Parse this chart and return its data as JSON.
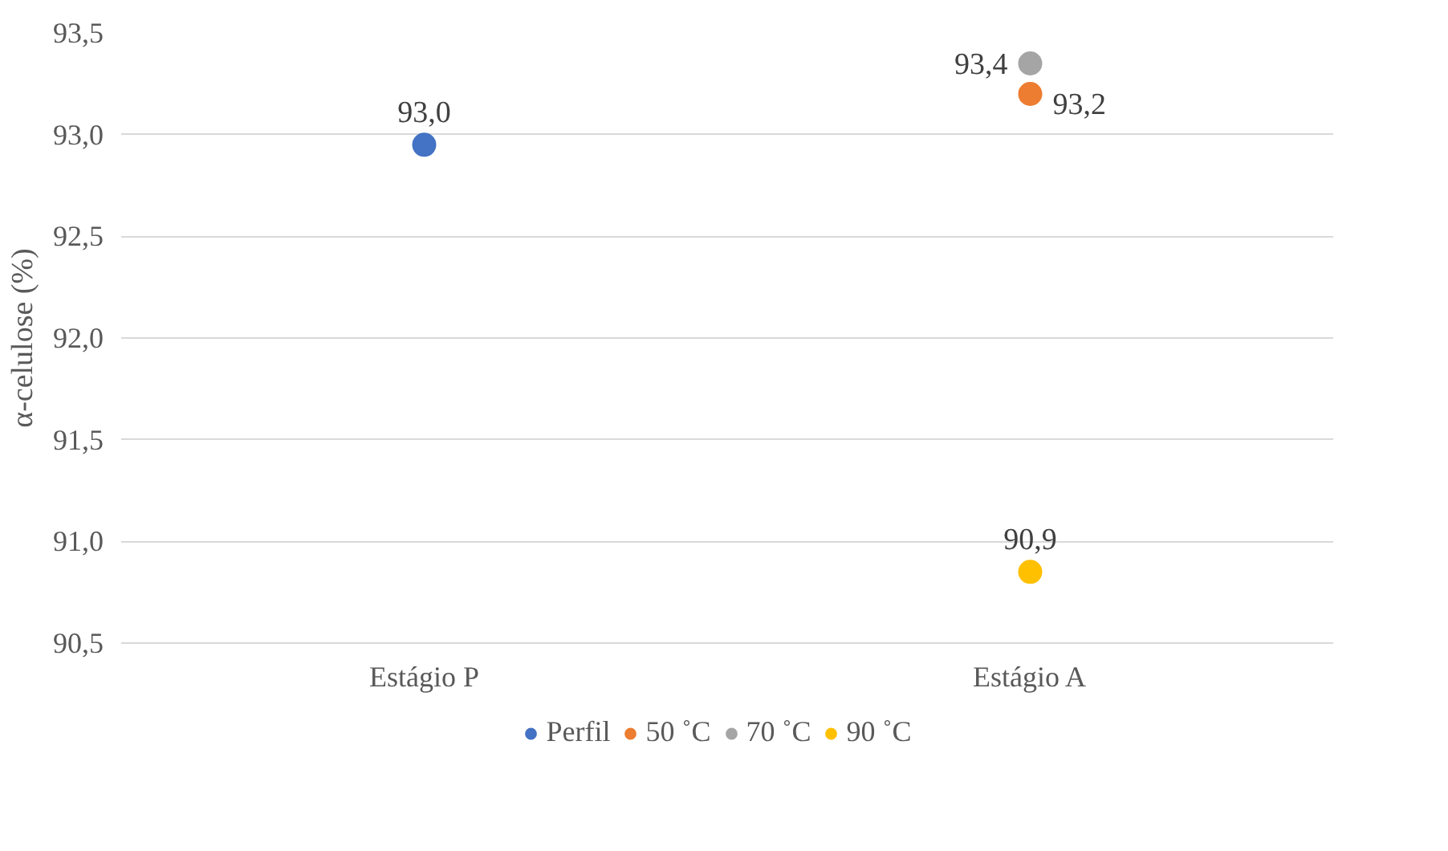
{
  "chart_data": {
    "type": "scatter",
    "ylabel": "α-celulose (%)",
    "categories": [
      "Estágio P",
      "Estágio A"
    ],
    "series": [
      {
        "name": "Perfil",
        "color": "#4472c4",
        "values": [
          92.95,
          null
        ],
        "value_labels": [
          "93,0",
          null
        ]
      },
      {
        "name": "50 ˚C",
        "color": "#ed7d31",
        "values": [
          null,
          93.2
        ],
        "value_labels": [
          null,
          "93,2"
        ]
      },
      {
        "name": "70 ˚C",
        "color": "#a5a5a5",
        "values": [
          null,
          93.35
        ],
        "value_labels": [
          null,
          "93,4"
        ]
      },
      {
        "name": "90 ˚C",
        "color": "#ffc000",
        "values": [
          null,
          90.85
        ],
        "value_labels": [
          null,
          "90,9"
        ]
      }
    ],
    "ylim": [
      90.5,
      93.5
    ],
    "yticks": [
      {
        "value": 90.5,
        "label": "90,5"
      },
      {
        "value": 91.0,
        "label": "91,0"
      },
      {
        "value": 91.5,
        "label": "91,5"
      },
      {
        "value": 92.0,
        "label": "92,0"
      },
      {
        "value": 92.5,
        "label": "92,5"
      },
      {
        "value": 93.0,
        "label": "93,0"
      },
      {
        "value": 93.5,
        "label": "93,5"
      }
    ],
    "grid": "y",
    "legend": "bottom",
    "marker": "circle"
  }
}
